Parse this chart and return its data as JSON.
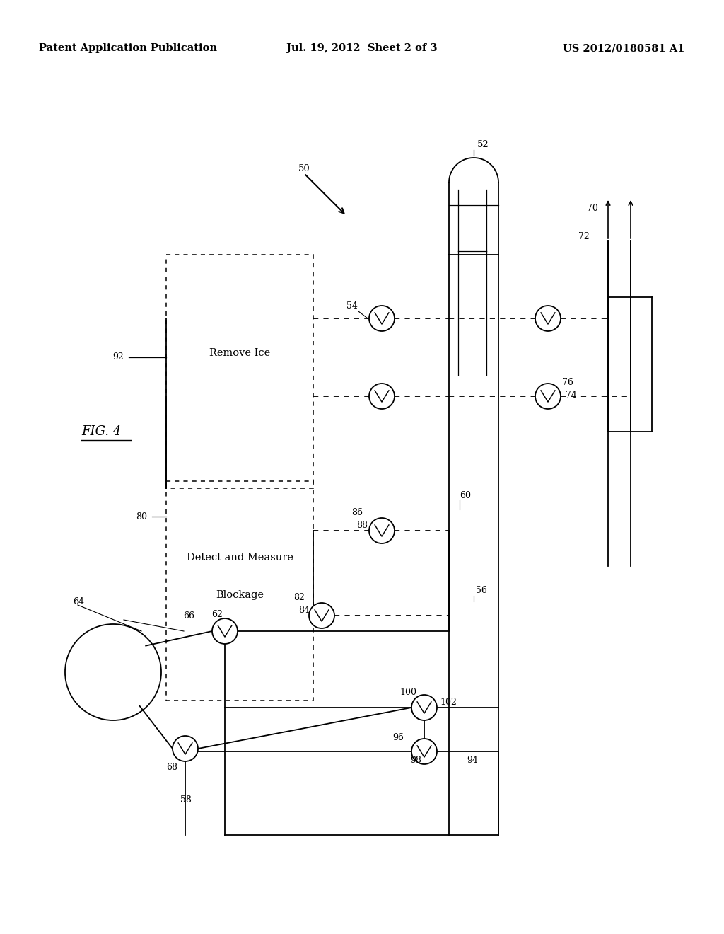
{
  "header_left": "Patent Application Publication",
  "header_center": "Jul. 19, 2012  Sheet 2 of 3",
  "header_right": "US 2012/0180581 A1",
  "background": "#ffffff"
}
